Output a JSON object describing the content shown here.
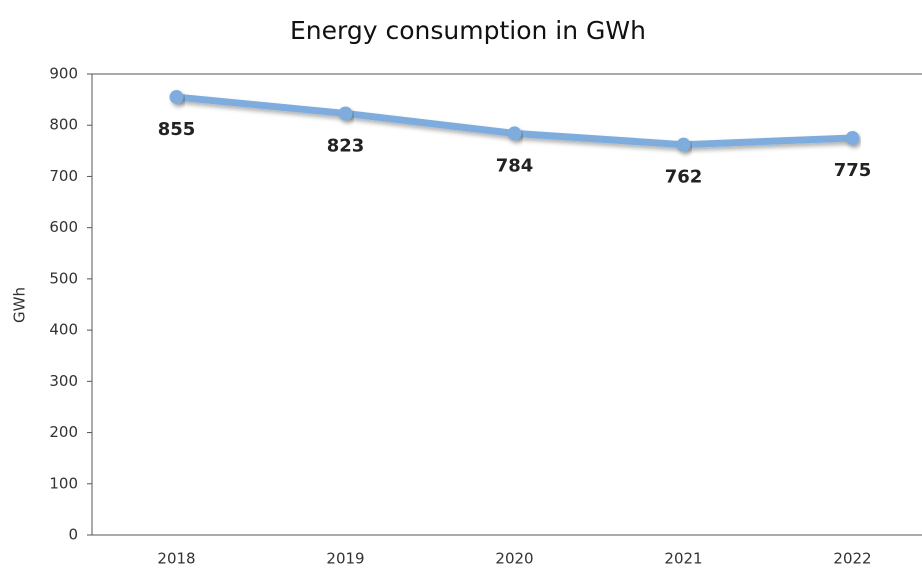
{
  "chart_data": {
    "type": "line",
    "title": "Energy consumption in GWh",
    "y_label": "GWh",
    "categories": [
      "2018",
      "2019",
      "2020",
      "2021",
      "2022"
    ],
    "values": [
      855,
      823,
      784,
      762,
      775
    ],
    "color": "#7eaddd",
    "ylim": [
      0,
      900
    ],
    "yticks": [
      0,
      100,
      200,
      300,
      400,
      500,
      600,
      700,
      800,
      900
    ],
    "grid": false
  }
}
